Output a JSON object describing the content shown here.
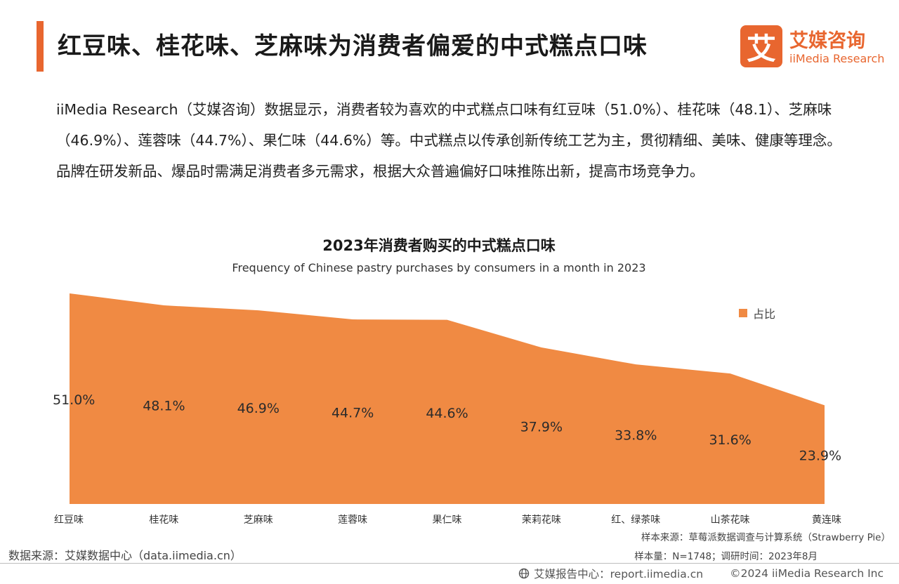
{
  "header": {
    "title": "红豆味、桂花味、芝麻味为消费者偏爱的中式糕点口味",
    "brand_mark": "艾",
    "brand_cn": "艾媒咨询",
    "brand_en": "iiMedia Research"
  },
  "intro": "iiMedia Research（艾媒咨询）数据显示，消费者较为喜欢的中式糕点口味有红豆味（51.0%）、桂花味（48.1）、芝麻味（46.9%）、莲蓉味（44.7%）、果仁味（44.6%）等。中式糕点以传承创新传统工艺为主，贯彻精细、美味、健康等理念。品牌在研发新品、爆品时需满足消费者多元需求，根据大众普遍偏好口味推陈出新，提高市场竞争力。",
  "chart_data": {
    "type": "area",
    "title": "2023年消费者购买的中式糕点口味",
    "subtitle": "Frequency of Chinese pastry purchases by consumers in a month in 2023",
    "categories": [
      "红豆味",
      "桂花味",
      "芝麻味",
      "莲蓉味",
      "果仁味",
      "茉莉花味",
      "红、绿茶味",
      "山茶花味",
      "黄连味"
    ],
    "series": [
      {
        "name": "占比",
        "values": [
          51.0,
          48.1,
          46.9,
          44.7,
          44.6,
          37.9,
          33.8,
          31.6,
          23.9
        ]
      }
    ],
    "data_labels": [
      "51.0%",
      "48.1%",
      "46.9%",
      "44.7%",
      "44.6%",
      "37.9%",
      "33.8%",
      "31.6%",
      "23.9%"
    ],
    "ylim": [
      0,
      51
    ],
    "grid": false,
    "legend_position": "top-right",
    "color": "#f08a43"
  },
  "sources": {
    "sample_source": "样本来源：草莓派数据调查与计算系统（Strawberry Pie）",
    "sample_size": "样本量：N=1748；调研时间：2023年8月",
    "data_source": "数据来源：艾媒数据中心（data.iimedia.cn）"
  },
  "footer": {
    "report_center": "艾媒报告中心：report.iimedia.cn",
    "copyright": "©2024  iiMedia Research  Inc"
  },
  "colors": {
    "accent": "#e8662f",
    "area": "#f08a43"
  }
}
